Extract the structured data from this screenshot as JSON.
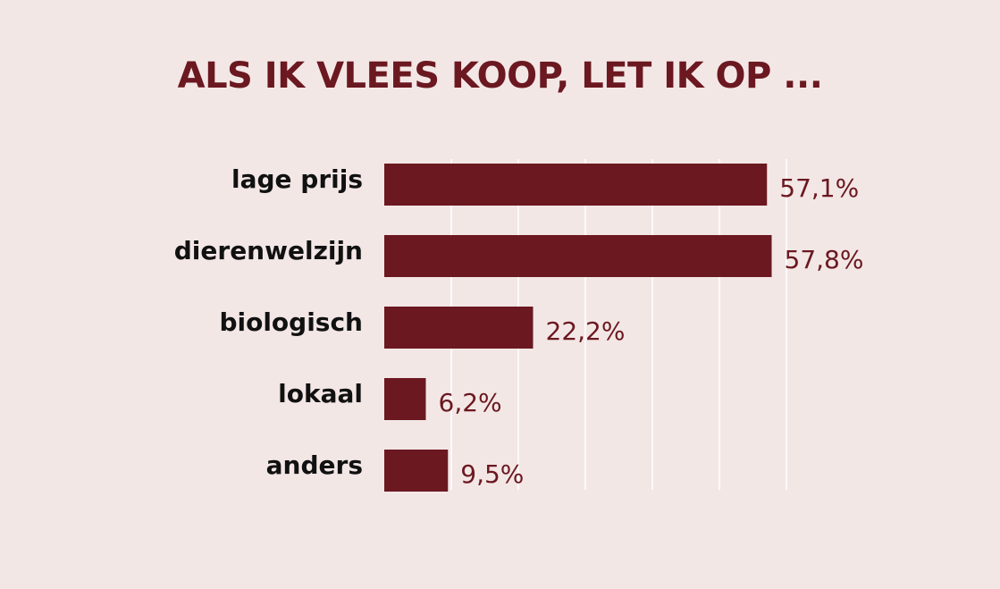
{
  "chart_data": {
    "type": "bar",
    "orientation": "horizontal",
    "title": "ALS IK VLEES KOOP, LET IK OP ...",
    "categories": [
      "lage prijs",
      "dierenwelzijn",
      "biologisch",
      "lokaal",
      "anders"
    ],
    "values": [
      57.1,
      57.8,
      22.2,
      6.2,
      9.5
    ],
    "value_labels": [
      "57,1%",
      "57,8%",
      "22,2%",
      "6,2%",
      "9,5%"
    ],
    "xlim": [
      0,
      60
    ],
    "grid": true,
    "xlabel": "",
    "ylabel": ""
  },
  "colors": {
    "background": "#f3e7e6",
    "bar": "#6b1820",
    "title": "#6b1820",
    "grid": "#ffffff",
    "category_text": "#111111"
  }
}
